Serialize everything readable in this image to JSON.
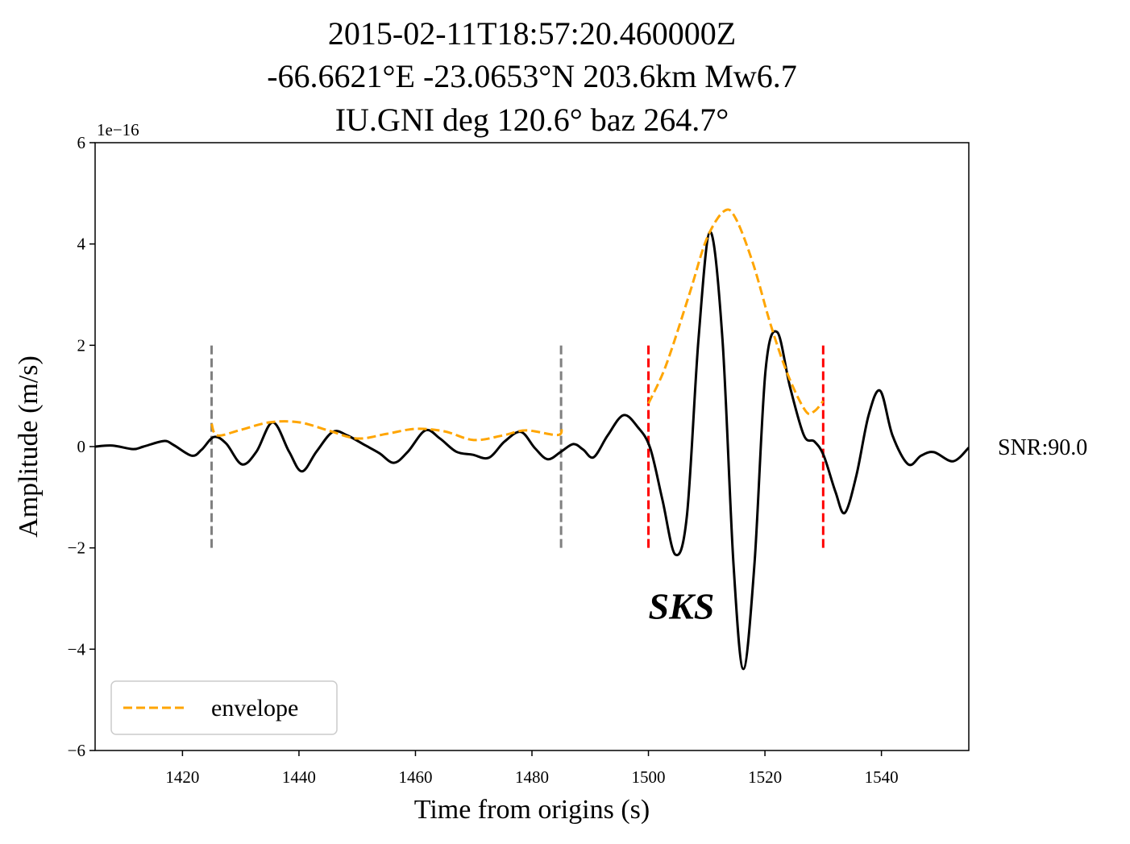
{
  "chart_data": {
    "type": "line",
    "title": [
      "2015-02-11T18:57:20.460000Z",
      "-66.6621°E -23.0653°N 203.6km Mw6.7",
      "IU.GNI deg 120.6° baz 264.7°"
    ],
    "x_label": "Time from origins (s)",
    "y_label": "Amplitude (m/s)",
    "y_offset_label": "1e−16",
    "xlim": [
      1405,
      1555
    ],
    "ylim": [
      -6,
      6
    ],
    "xticks": [
      1420,
      1440,
      1460,
      1480,
      1500,
      1520,
      1540
    ],
    "yticks": [
      {
        "value": -6,
        "label": "−6"
      },
      {
        "value": -4,
        "label": "−4"
      },
      {
        "value": -2,
        "label": "−2"
      },
      0,
      2,
      4,
      6
    ],
    "legend_position": "lower left",
    "series": [
      {
        "color": "#000000",
        "style": "solid",
        "x": [
          1405,
          1408,
          1411.5,
          1413.3,
          1416.8,
          1418.5,
          1421.6,
          1423.3,
          1425.4,
          1427.5,
          1430.2,
          1432.7,
          1435.5,
          1438.3,
          1440.5,
          1443,
          1445.8,
          1448.3,
          1451.3,
          1453.8,
          1456.3,
          1458.7,
          1461.7,
          1464.2,
          1467,
          1469.8,
          1472.6,
          1475.3,
          1478.1,
          1480.5,
          1482.7,
          1485,
          1487.1,
          1488.8,
          1490.6,
          1493,
          1495.7,
          1498.2,
          1500.3,
          1502.4,
          1504.6,
          1506.6,
          1508.6,
          1510.6,
          1512.7,
          1514.6,
          1516.3,
          1518.2,
          1520.1,
          1522.1,
          1524.3,
          1526.7,
          1528.5,
          1530.1,
          1532.1,
          1533.7,
          1535.7,
          1537.8,
          1539.8,
          1541.9,
          1544.6,
          1546.8,
          1549,
          1552.3,
          1555
        ],
        "values": [
          0,
          0.02,
          -0.05,
          0,
          0.11,
          0.03,
          -0.18,
          -0.06,
          0.19,
          0.06,
          -0.35,
          -0.1,
          0.48,
          -0.1,
          -0.49,
          -0.1,
          0.29,
          0.22,
          0.03,
          -0.13,
          -0.32,
          -0.1,
          0.32,
          0.16,
          -0.1,
          -0.16,
          -0.22,
          0.1,
          0.29,
          -0.03,
          -0.25,
          -0.1,
          0.05,
          -0.06,
          -0.21,
          0.22,
          0.62,
          0.38,
          -0.03,
          -1.05,
          -2.13,
          -1.37,
          2.13,
          4.24,
          2.13,
          -2.32,
          -4.39,
          -2.32,
          1.5,
          2.26,
          1.18,
          0.22,
          0.1,
          -0.18,
          -0.89,
          -1.31,
          -0.57,
          0.62,
          1.1,
          0.22,
          -0.35,
          -0.18,
          -0.11,
          -0.29,
          -0.02
        ]
      },
      {
        "name": "envelope",
        "color": "#ffa500",
        "style": "dashed",
        "x": [
          1425,
          1426,
          1430,
          1435,
          1440,
          1445,
          1450,
          1455,
          1460,
          1465,
          1470,
          1475,
          1479,
          1484.5,
          1485,
          null,
          1500,
          1503,
          1507,
          1510,
          1513,
          1515,
          1518,
          1521,
          1524,
          1527,
          1528.5,
          1530
        ],
        "values": [
          0.45,
          0.22,
          0.33,
          0.48,
          0.48,
          0.32,
          0.16,
          0.25,
          0.35,
          0.3,
          0.13,
          0.22,
          0.32,
          0.23,
          0.42,
          null,
          0.85,
          1.6,
          3.0,
          4.1,
          4.65,
          4.5,
          3.6,
          2.4,
          1.4,
          0.7,
          0.7,
          0.9
        ]
      }
    ],
    "vlines": [
      {
        "x": 1425,
        "ymin": -2,
        "ymax": 2,
        "color": "#808080"
      },
      {
        "x": 1485,
        "ymin": -2,
        "ymax": 2,
        "color": "#808080"
      },
      {
        "x": 1500,
        "ymin": -2,
        "ymax": 2,
        "color": "#ff0000"
      },
      {
        "x": 1530,
        "ymin": -2,
        "ymax": 2,
        "color": "#ff0000"
      }
    ],
    "annotations": [
      {
        "text": "SKS",
        "x": 1500,
        "y": -3.4
      }
    ],
    "side_label": "SNR:90.0"
  }
}
